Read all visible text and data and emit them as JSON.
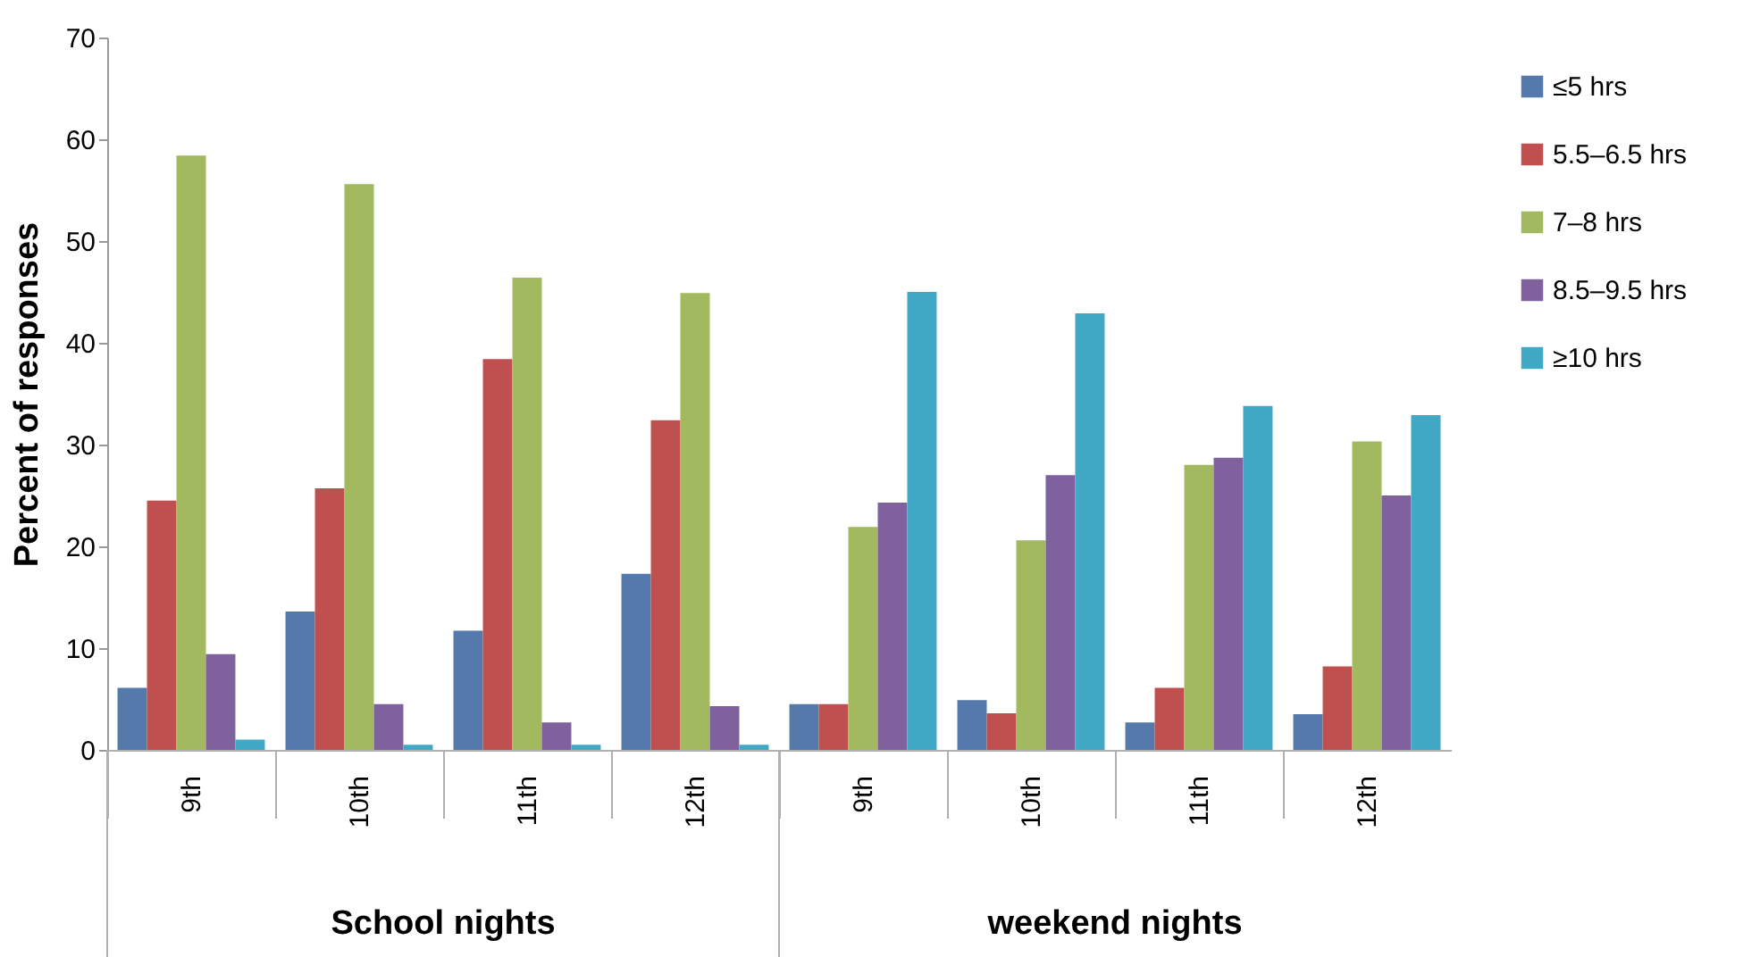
{
  "chart_data": {
    "type": "bar",
    "ylabel": "Percent of responses",
    "categories": [
      "9th",
      "10th",
      "11th",
      "12th",
      "9th",
      "10th",
      "11th",
      "12th"
    ],
    "annotations": [
      "School nights",
      "weekend nights"
    ],
    "series": [
      {
        "name": "≤5 hrs",
        "color": "#5579aa",
        "values": [
          6.1,
          13.6,
          11.7,
          17.3,
          4.5,
          4.9,
          2.7,
          3.5
        ]
      },
      {
        "name": "5.5–6.5 hrs",
        "color": "#c0504f",
        "values": [
          24.5,
          25.7,
          38.4,
          32.4,
          4.5,
          3.6,
          6.1,
          8.2
        ]
      },
      {
        "name": "7–8 hrs",
        "color": "#a2b960",
        "values": [
          58.4,
          55.6,
          46.4,
          44.9,
          21.9,
          20.6,
          28.0,
          30.3
        ]
      },
      {
        "name": "8.5–9.5 hrs",
        "color": "#7f619e",
        "values": [
          9.4,
          4.5,
          2.7,
          4.3,
          24.3,
          27.0,
          28.7,
          25.0
        ]
      },
      {
        "name": "≥10 hrs",
        "color": "#41a9c6",
        "values": [
          1.0,
          0.5,
          0.5,
          0.5,
          45.0,
          42.9,
          33.8,
          32.9
        ]
      }
    ],
    "ylim": [
      0,
      70
    ],
    "yticks": [
      0,
      10,
      20,
      30,
      40,
      50,
      60,
      70
    ],
    "grid": false,
    "legend": "right"
  }
}
